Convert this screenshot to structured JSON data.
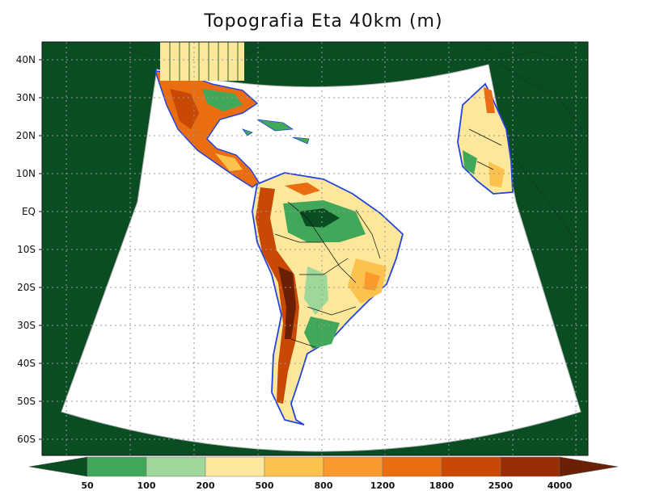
{
  "title": "Topografia Eta 40km (m)",
  "y_tick_labels": [
    "40N",
    "30N",
    "20N",
    "10N",
    "EQ",
    "10S",
    "20S",
    "30S",
    "40S",
    "50S",
    "60S"
  ],
  "colorbar": {
    "labels": [
      "50",
      "100",
      "200",
      "500",
      "800",
      "1200",
      "1800",
      "2500",
      "4000"
    ],
    "colors": [
      "#0b4d22",
      "#41a85a",
      "#9fd69a",
      "#fde79b",
      "#fdc24d",
      "#fb9a2c",
      "#ea6d12",
      "#c94804",
      "#9a2c04",
      "#6b2006"
    ]
  },
  "colors": {
    "outside_domain": "#0b4d22",
    "ocean": "#ffffff",
    "coast": "#2244dd",
    "grid": "#999999"
  }
}
